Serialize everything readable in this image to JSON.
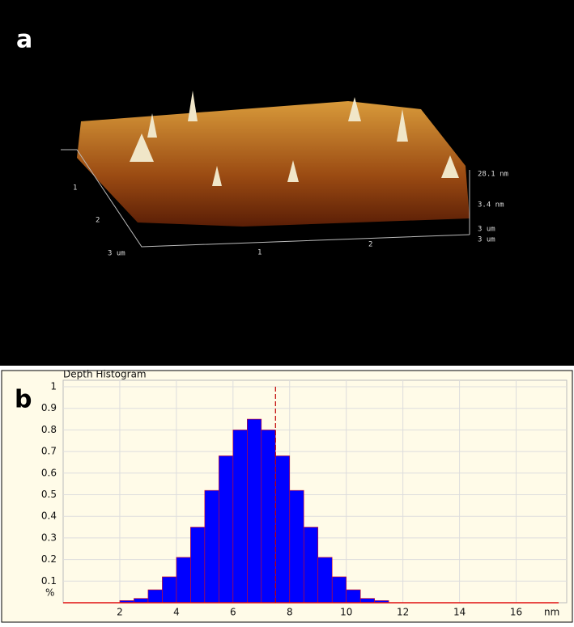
{
  "panel_a": {
    "label": "a",
    "axis_labels": [
      "28.1 nm",
      "3.4 nm",
      "3 um",
      "3 um",
      "1",
      "2",
      "1",
      "2",
      "3 um"
    ]
  },
  "chart_data": {
    "type": "histogram",
    "panel_label": "b",
    "title": "Depth Histogram",
    "x_label": "nm",
    "y_label": "%",
    "bins": [
      0,
      0.5,
      1,
      1.5,
      2,
      2.5,
      3,
      3.5,
      4,
      4.5,
      5,
      5.5,
      6,
      6.5,
      7,
      7.5,
      8,
      8.5,
      9,
      9.5,
      10,
      10.5,
      11,
      11.5,
      12,
      12.5,
      13,
      13.5,
      14,
      14.5,
      15,
      15.5,
      16,
      16.5,
      17
    ],
    "values": [
      0,
      0,
      0,
      0,
      0.01,
      0.02,
      0.06,
      0.12,
      0.21,
      0.35,
      0.52,
      0.68,
      0.8,
      0.85,
      0.8,
      0.68,
      0.52,
      0.35,
      0.21,
      0.12,
      0.06,
      0.02,
      0.01,
      0,
      0,
      0,
      0,
      0,
      0,
      0,
      0,
      0,
      0,
      0
    ],
    "color": "#0000ff",
    "edge_color": "#e01010",
    "marker_x": 7.5,
    "marker_color": "#c00000",
    "xlim": [
      0,
      17.5
    ],
    "xticks": [
      2,
      4,
      6,
      8,
      10,
      12,
      14,
      16
    ],
    "ylim": [
      0,
      1
    ],
    "yticks": [
      0.1,
      0.2,
      0.3,
      0.4,
      0.5,
      0.6,
      0.7,
      0.8,
      0.9,
      1
    ],
    "grid": true
  }
}
